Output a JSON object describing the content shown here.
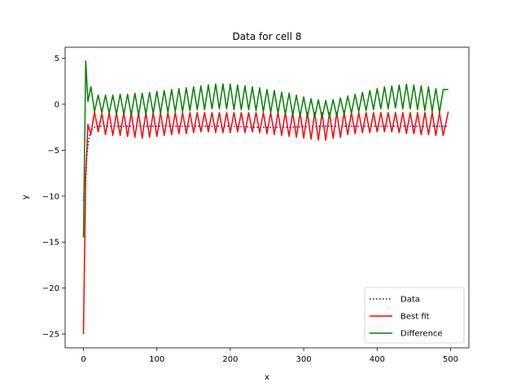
{
  "chart_data": {
    "type": "line",
    "title": "Data for cell 8",
    "xlabel": "x",
    "ylabel": "y",
    "xlim": [
      -25,
      525
    ],
    "ylim": [
      -26.5,
      6.2
    ],
    "xticks": [
      0,
      100,
      200,
      300,
      400,
      500
    ],
    "xtick_labels": [
      "0",
      "100",
      "200",
      "300",
      "400",
      "500"
    ],
    "yticks": [
      5,
      0,
      -5,
      -10,
      -15,
      -20,
      -25
    ],
    "ytick_labels": [
      "5",
      "0",
      "−5",
      "−10",
      "−15",
      "−20",
      "−25"
    ],
    "grid": false,
    "legend_position": "lower-right",
    "series": [
      {
        "name": "Data",
        "color": "#0000ff",
        "style": "dotted",
        "x": [
          0,
          2,
          4,
          6,
          8,
          10,
          12,
          15,
          20,
          30,
          50,
          80,
          120,
          160,
          200,
          240,
          280,
          320,
          360,
          400,
          440,
          480,
          497
        ],
        "y": [
          -10.5,
          -8.0,
          -6.0,
          -4.5,
          -3.5,
          -3.0,
          -2.7,
          -2.5,
          -2.4,
          -2.4,
          -2.4,
          -2.4,
          -2.4,
          -2.4,
          -2.4,
          -2.5,
          -2.5,
          -2.4,
          -2.4,
          -2.4,
          -2.4,
          -2.4,
          -2.4
        ]
      },
      {
        "name": "Best fit",
        "color": "#ff0000",
        "style": "solid",
        "x": [
          0,
          3,
          6,
          10,
          15,
          20,
          25,
          30,
          35,
          40,
          45,
          50,
          55,
          60,
          65,
          70,
          75,
          80,
          85,
          90,
          95,
          100,
          105,
          110,
          115,
          120,
          125,
          130,
          135,
          140,
          145,
          150,
          155,
          160,
          165,
          170,
          175,
          180,
          185,
          190,
          195,
          200,
          205,
          210,
          215,
          220,
          225,
          230,
          235,
          240,
          245,
          250,
          255,
          260,
          265,
          270,
          275,
          280,
          285,
          290,
          295,
          300,
          305,
          310,
          315,
          320,
          325,
          330,
          335,
          340,
          345,
          350,
          355,
          360,
          365,
          370,
          375,
          380,
          385,
          390,
          395,
          400,
          405,
          410,
          415,
          420,
          425,
          430,
          435,
          440,
          445,
          450,
          455,
          460,
          465,
          470,
          475,
          480,
          485,
          490,
          497
        ],
        "y": [
          -25.0,
          -8.0,
          -2.2,
          -3.3,
          -0.8,
          -3.0,
          -1.0,
          -3.3,
          -0.9,
          -3.4,
          -0.9,
          -3.4,
          -0.9,
          -3.5,
          -0.9,
          -3.6,
          -0.9,
          -3.7,
          -0.9,
          -3.6,
          -0.9,
          -3.5,
          -0.9,
          -3.4,
          -0.9,
          -3.3,
          -0.9,
          -3.2,
          -0.9,
          -3.2,
          -0.9,
          -3.1,
          -0.9,
          -3.0,
          -0.9,
          -3.0,
          -0.9,
          -3.1,
          -0.9,
          -3.1,
          -0.9,
          -3.1,
          -0.9,
          -3.0,
          -0.9,
          -3.1,
          -0.9,
          -3.0,
          -0.9,
          -3.1,
          -0.9,
          -3.2,
          -0.9,
          -3.3,
          -0.9,
          -3.4,
          -0.9,
          -3.5,
          -0.9,
          -3.6,
          -0.9,
          -3.7,
          -0.9,
          -3.8,
          -0.9,
          -3.9,
          -0.9,
          -3.9,
          -0.9,
          -3.7,
          -0.9,
          -3.6,
          -0.9,
          -3.3,
          -0.9,
          -3.2,
          -0.9,
          -3.1,
          -0.9,
          -3.1,
          -0.9,
          -3.0,
          -0.9,
          -3.0,
          -0.9,
          -3.0,
          -0.9,
          -3.1,
          -0.9,
          -3.2,
          -0.9,
          -3.2,
          -0.9,
          -3.3,
          -0.9,
          -3.3,
          -0.9,
          -3.4,
          -0.9,
          -3.4,
          -0.8
        ]
      },
      {
        "name": "Difference",
        "color": "#008000",
        "style": "solid",
        "x": [
          0,
          3,
          6,
          10,
          15,
          20,
          25,
          30,
          35,
          40,
          45,
          50,
          55,
          60,
          65,
          70,
          75,
          80,
          85,
          90,
          95,
          100,
          105,
          110,
          115,
          120,
          125,
          130,
          135,
          140,
          145,
          150,
          155,
          160,
          165,
          170,
          175,
          180,
          185,
          190,
          195,
          200,
          205,
          210,
          215,
          220,
          225,
          230,
          235,
          240,
          245,
          250,
          255,
          260,
          265,
          270,
          275,
          280,
          285,
          290,
          295,
          300,
          305,
          310,
          315,
          320,
          325,
          330,
          335,
          340,
          345,
          350,
          355,
          360,
          365,
          370,
          375,
          380,
          385,
          390,
          395,
          400,
          405,
          410,
          415,
          420,
          425,
          430,
          435,
          440,
          445,
          450,
          455,
          460,
          465,
          470,
          475,
          480,
          485,
          490,
          497
        ],
        "y": [
          -14.5,
          4.7,
          0.3,
          1.9,
          -0.8,
          1.0,
          -0.9,
          1.0,
          -1.0,
          1.0,
          -1.1,
          1.1,
          -1.1,
          1.1,
          -1.2,
          1.2,
          -1.2,
          1.2,
          -1.1,
          1.3,
          -1.0,
          1.4,
          -1.0,
          1.5,
          -0.9,
          1.6,
          -0.8,
          1.7,
          -0.8,
          1.8,
          -0.7,
          1.9,
          -0.6,
          2.0,
          -0.6,
          2.1,
          -0.5,
          2.2,
          -0.5,
          2.2,
          -0.5,
          2.2,
          -0.6,
          2.1,
          -0.6,
          2.0,
          -0.6,
          1.9,
          -0.7,
          1.8,
          -0.8,
          1.6,
          -0.9,
          1.5,
          -1.0,
          1.3,
          -1.1,
          1.2,
          -1.2,
          1.0,
          -1.3,
          0.8,
          -1.4,
          0.6,
          -1.4,
          0.5,
          -1.5,
          0.4,
          -1.4,
          0.5,
          -1.3,
          0.7,
          -1.1,
          0.9,
          -1.0,
          1.1,
          -0.8,
          1.3,
          -0.7,
          1.5,
          -0.6,
          1.7,
          -0.5,
          1.9,
          -0.5,
          2.0,
          -0.4,
          2.1,
          -0.5,
          2.2,
          -0.5,
          2.1,
          -0.6,
          2.0,
          -0.7,
          1.9,
          -0.8,
          1.7,
          -0.9,
          1.6,
          1.6
        ]
      }
    ]
  }
}
